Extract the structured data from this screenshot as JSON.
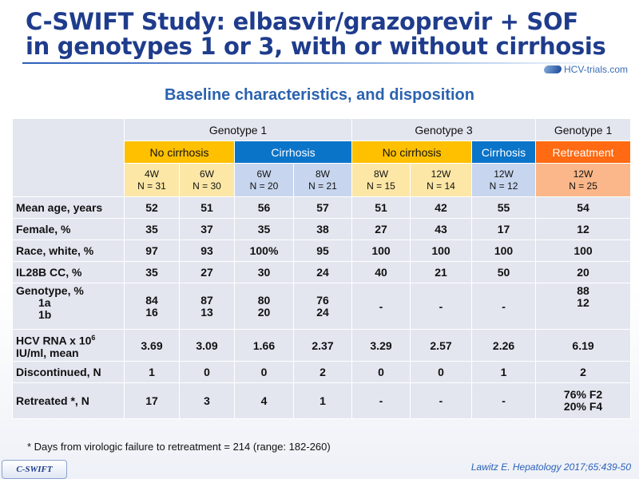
{
  "title": {
    "line1": "C-SWIFT Study: elbasvir/grazoprevir + SOF",
    "line2": "in genotypes 1 or 3, with or without cirrhosis"
  },
  "logo": {
    "text": "HCV-trials.com"
  },
  "subtitle": "Baseline characteristics, and disposition",
  "table": {
    "genotype_headers": [
      "Genotype 1",
      "Genotype 3",
      "Genotype 1"
    ],
    "subgroup_headers": [
      "No cirrhosis",
      "Cirrhosis",
      "No cirrhosis",
      "Cirrhosis",
      "Retreatment"
    ],
    "arms": [
      {
        "duration": "4W",
        "n": "N = 31"
      },
      {
        "duration": "6W",
        "n": "N = 30"
      },
      {
        "duration": "6W",
        "n": "N = 20"
      },
      {
        "duration": "8W",
        "n": "N = 21"
      },
      {
        "duration": "8W",
        "n": "N = 15"
      },
      {
        "duration": "12W",
        "n": "N = 14"
      },
      {
        "duration": "12W",
        "n": "N = 12"
      },
      {
        "duration": "12W",
        "n": "N = 25"
      }
    ],
    "rows": [
      {
        "label": "Mean age, years",
        "values": [
          "52",
          "51",
          "56",
          "57",
          "51",
          "42",
          "55",
          "54"
        ]
      },
      {
        "label": "Female, %",
        "values": [
          "35",
          "37",
          "35",
          "38",
          "27",
          "43",
          "17",
          "12"
        ]
      },
      {
        "label": "Race, white, %",
        "values": [
          "97",
          "93",
          "100%",
          "95",
          "100",
          "100",
          "100",
          "100"
        ]
      },
      {
        "label": "IL28B CC, %",
        "values": [
          "35",
          "27",
          "30",
          "24",
          "40",
          "21",
          "50",
          "20"
        ]
      }
    ],
    "genotype_row": {
      "label": "Genotype, %",
      "sub1": "1a",
      "sub2": "1b",
      "v1a": [
        "84",
        "87",
        "80",
        "76",
        "-",
        "-",
        "-",
        "88"
      ],
      "v1b": [
        "16",
        "13",
        "20",
        "24",
        "",
        "",
        "",
        "12"
      ]
    },
    "hcv_row": {
      "label_main": "HCV RNA x 10",
      "label_sup": "6",
      "label_line2": "IU/ml, mean",
      "values": [
        "3.69",
        "3.09",
        "1.66",
        "2.37",
        "3.29",
        "2.57",
        "2.26",
        "6.19"
      ]
    },
    "discontinued_row": {
      "label": "Discontinued, N",
      "values": [
        "1",
        "0",
        "0",
        "2",
        "0",
        "0",
        "1",
        "2"
      ]
    },
    "retreated_row": {
      "label": "Retreated *, N",
      "values": [
        "17",
        "3",
        "4",
        "1",
        "-",
        "-",
        "-"
      ],
      "last_line1": "76% F2",
      "last_line2": "20% F4"
    }
  },
  "footnote": "* Days from virologic failure to retreatment = 214 (range: 182-260)",
  "badge": "C-SWIFT",
  "reference": "Lawitz E. Hepatology 2017;65:439-50",
  "colors": {
    "title": "#1f3c8c",
    "no_cirrhosis": "#ffc000",
    "cirrhosis": "#0a74c9",
    "retreatment": "#ff6a12",
    "row_bg": "#e3e6ef"
  }
}
